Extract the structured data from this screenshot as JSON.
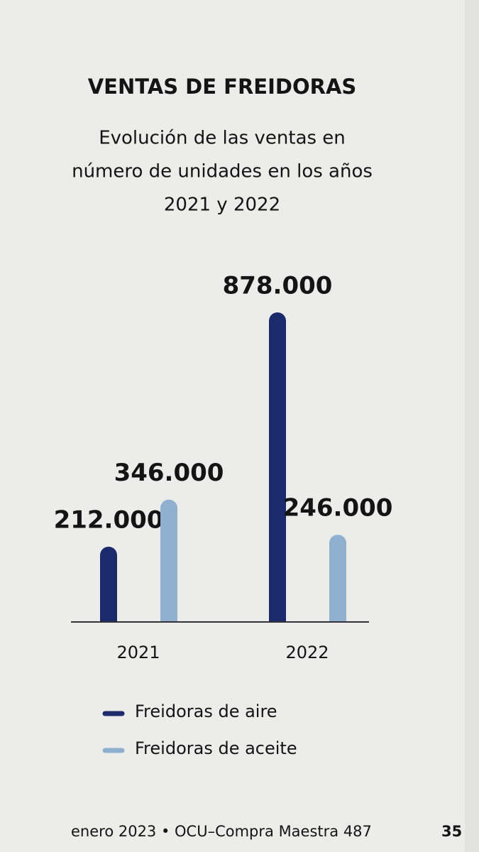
{
  "chart_data": {
    "type": "bar",
    "title": "VENTAS DE FREIDORAS",
    "subtitle": [
      "Evolución de las ventas en",
      "número de unidades en los años",
      "2021 y 2022"
    ],
    "categories": [
      "2021",
      "2022"
    ],
    "series": [
      {
        "name": "Freidoras de aire",
        "color": "#1b2a6b",
        "values": [
          212000,
          878000
        ],
        "value_labels": [
          "212.000",
          "878.000"
        ]
      },
      {
        "name": "Freidoras de aceite",
        "color": "#8fb0cf",
        "values": [
          346000,
          246000
        ],
        "value_labels": [
          "346.000",
          "246.000"
        ]
      }
    ],
    "ylim": [
      0,
      878000
    ],
    "legend": "bottom"
  },
  "footer": {
    "text": "enero 2023 • OCU–Compra Maestra 487",
    "page": "35"
  }
}
